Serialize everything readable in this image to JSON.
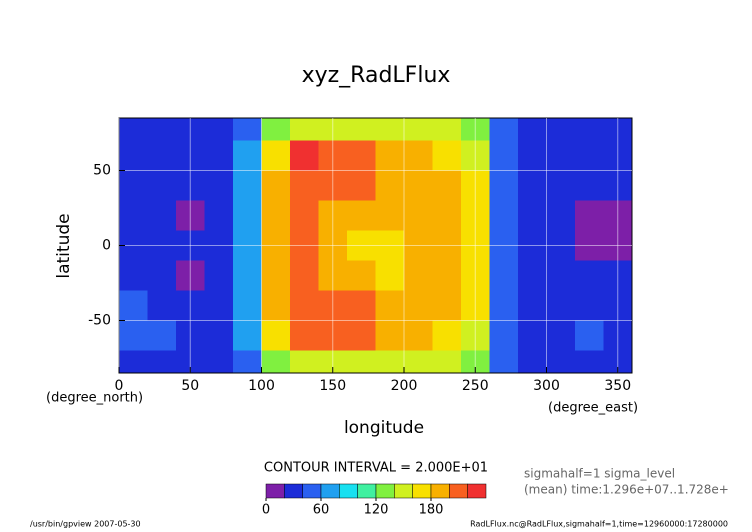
{
  "chart_data": {
    "type": "contour",
    "title": "xyz_RadLFlux",
    "x_label": "longitude",
    "y_label": "latitude",
    "x_units": "(degree_east)",
    "y_units": "(degree_north)",
    "xlim": [
      0,
      360
    ],
    "ylim": [
      -85,
      85
    ],
    "xticks": [
      0,
      50,
      100,
      150,
      200,
      250,
      300,
      350
    ],
    "yticks": [
      -50,
      0,
      50
    ],
    "grid": true,
    "x": [
      10,
      30,
      50,
      70,
      90,
      110,
      130,
      150,
      170,
      190,
      210,
      230,
      250,
      270,
      290,
      310,
      330,
      350
    ],
    "y": [
      80,
      60,
      40,
      20,
      0,
      -20,
      -40,
      -60,
      -80
    ],
    "z": [
      [
        30,
        30,
        30,
        30,
        50,
        120,
        140,
        150,
        150,
        150,
        150,
        140,
        120,
        40,
        30,
        30,
        30,
        30
      ],
      [
        30,
        35,
        30,
        30,
        60,
        170,
        225,
        200,
        200,
        190,
        185,
        175,
        150,
        40,
        30,
        30,
        30,
        30
      ],
      [
        30,
        30,
        35,
        30,
        60,
        190,
        210,
        210,
        200,
        190,
        190,
        185,
        160,
        40,
        30,
        30,
        30,
        30
      ],
      [
        30,
        30,
        15,
        30,
        60,
        190,
        205,
        190,
        180,
        185,
        180,
        190,
        170,
        40,
        30,
        30,
        15,
        15
      ],
      [
        30,
        30,
        30,
        30,
        60,
        190,
        205,
        185,
        175,
        175,
        185,
        190,
        170,
        40,
        30,
        30,
        15,
        15
      ],
      [
        30,
        30,
        15,
        30,
        60,
        190,
        205,
        195,
        180,
        175,
        180,
        190,
        170,
        40,
        30,
        30,
        30,
        30
      ],
      [
        45,
        30,
        35,
        30,
        60,
        190,
        210,
        210,
        200,
        190,
        190,
        185,
        160,
        40,
        30,
        30,
        30,
        30
      ],
      [
        45,
        45,
        30,
        30,
        60,
        170,
        200,
        205,
        200,
        190,
        185,
        175,
        150,
        40,
        30,
        30,
        45,
        30
      ],
      [
        30,
        30,
        30,
        30,
        50,
        120,
        140,
        150,
        150,
        150,
        150,
        140,
        120,
        40,
        30,
        30,
        30,
        30
      ]
    ],
    "levels": [
      0,
      20,
      40,
      60,
      80,
      100,
      120,
      140,
      160,
      180,
      200,
      220,
      240
    ],
    "colors": [
      "#7d1fa8",
      "#1c2cd8",
      "#2a60f0",
      "#20a0f0",
      "#18e0f0",
      "#40f0a0",
      "#80f040",
      "#d0f020",
      "#f8e000",
      "#f8b000",
      "#f86020",
      "#f03030"
    ],
    "colorbar_ticks": [
      0,
      60,
      120,
      180
    ],
    "contour_interval": "CONTOUR INTERVAL = 2.000E+01",
    "info": [
      "sigmahalf=1 sigma_level",
      "(mean) time:1.296e+07..1.728e+"
    ],
    "footer_left": "/usr/bin/gpview  2007-05-30",
    "footer_right": "RadLFlux.nc@RadLFlux,sigmahalf=1,time=12960000:17280000"
  }
}
